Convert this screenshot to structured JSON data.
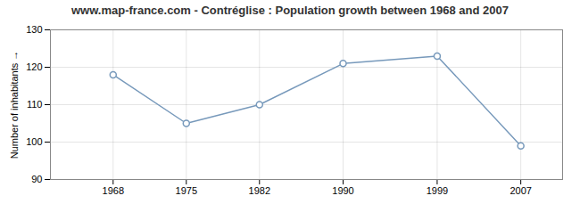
{
  "chart_data": {
    "type": "line",
    "title": "www.map-france.com - Contréglise : Population growth between 1968 and 2007",
    "ylabel": "Number of inhabitants",
    "x": [
      1968,
      1975,
      1982,
      1990,
      1999,
      2007
    ],
    "values": [
      118,
      105,
      110,
      121,
      123,
      99
    ],
    "color": "#7799bb",
    "marker": "circle",
    "xlim": [
      1962,
      2011
    ],
    "xticks": [
      1968,
      1975,
      1982,
      1990,
      1999,
      2007
    ],
    "ylim": [
      90,
      130
    ],
    "yticks": [
      90,
      100,
      110,
      120,
      130
    ],
    "grid": true
  }
}
